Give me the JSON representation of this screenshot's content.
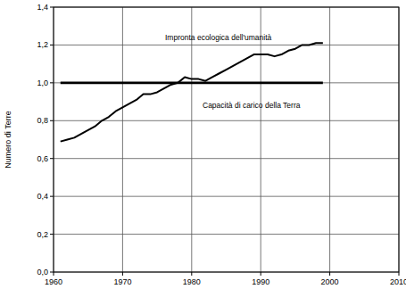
{
  "chart_data": {
    "type": "line",
    "y_label": "Numero di Terre",
    "x": [
      1961,
      1962,
      1963,
      1964,
      1965,
      1966,
      1967,
      1968,
      1969,
      1970,
      1971,
      1972,
      1973,
      1974,
      1975,
      1976,
      1977,
      1978,
      1979,
      1980,
      1981,
      1982,
      1983,
      1984,
      1985,
      1986,
      1987,
      1988,
      1989,
      1990,
      1991,
      1992,
      1993,
      1994,
      1995,
      1996,
      1997,
      1998,
      1999
    ],
    "series": [
      {
        "name": "Impronta ecologica dell'umanità",
        "color": "#000000",
        "values": [
          0.69,
          0.7,
          0.71,
          0.73,
          0.75,
          0.77,
          0.8,
          0.82,
          0.85,
          0.87,
          0.89,
          0.91,
          0.94,
          0.94,
          0.95,
          0.97,
          0.99,
          1.0,
          1.03,
          1.02,
          1.02,
          1.01,
          1.03,
          1.05,
          1.07,
          1.09,
          1.11,
          1.13,
          1.15,
          1.15,
          1.15,
          1.14,
          1.15,
          1.17,
          1.18,
          1.2,
          1.2,
          1.21,
          1.21
        ]
      },
      {
        "name": "Capacità di carico della Terra",
        "color": "#000000",
        "values": [
          1.0,
          1.0,
          1.0,
          1.0,
          1.0,
          1.0,
          1.0,
          1.0,
          1.0,
          1.0,
          1.0,
          1.0,
          1.0,
          1.0,
          1.0,
          1.0,
          1.0,
          1.0,
          1.0,
          1.0,
          1.0,
          1.0,
          1.0,
          1.0,
          1.0,
          1.0,
          1.0,
          1.0,
          1.0,
          1.0,
          1.0,
          1.0,
          1.0,
          1.0,
          1.0,
          1.0,
          1.0,
          1.0,
          1.0
        ]
      }
    ],
    "xlim": [
      1960,
      2010
    ],
    "xticks": [
      1960,
      1970,
      1980,
      1990,
      2000,
      2010
    ],
    "ylim": [
      0,
      1.4
    ],
    "yticks": [
      {
        "value": 0,
        "label": "0,0"
      },
      {
        "value": 0.2,
        "label": "0,2"
      },
      {
        "value": 0.4,
        "label": "0,4"
      },
      {
        "value": 0.6,
        "label": "0,6"
      },
      {
        "value": 0.8,
        "label": "0,8"
      },
      {
        "value": 1.0,
        "label": "1,0"
      },
      {
        "value": 1.2,
        "label": "1,2"
      },
      {
        "value": 1.4,
        "label": "1,4"
      }
    ],
    "grid": true
  }
}
